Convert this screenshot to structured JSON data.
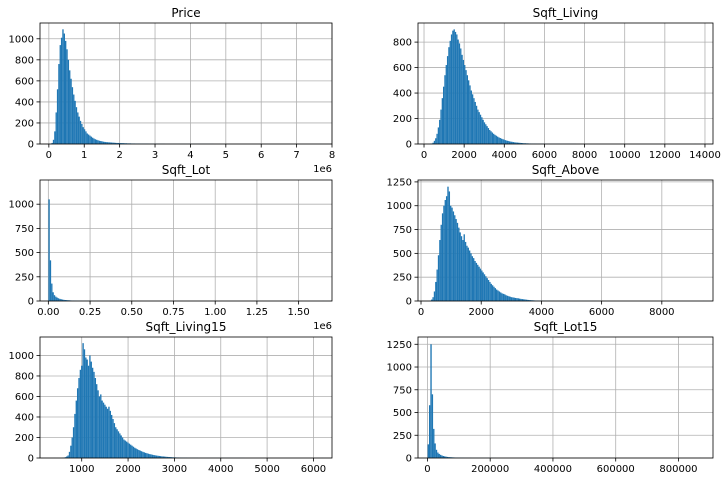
{
  "figure": {
    "background": "#ffffff",
    "bar_color": "#1f77b4",
    "grid_color": "#b0b0b0"
  },
  "chart_data": [
    {
      "type": "bar",
      "title": "Price",
      "grid": true,
      "offset_text": "1e6",
      "xlim": [
        -0.25,
        8.0
      ],
      "ylim": [
        0,
        1150
      ],
      "xticks": [
        0,
        1,
        2,
        3,
        4,
        5,
        6,
        7,
        8
      ],
      "xticklabels": [
        "0",
        "1",
        "2",
        "3",
        "4",
        "5",
        "6",
        "7",
        "8"
      ],
      "yticks": [
        0,
        200,
        400,
        600,
        800,
        1000
      ],
      "yticklabels": [
        "0",
        "200",
        "400",
        "600",
        "800",
        "1000"
      ],
      "bin_range": [
        0.075,
        7.7
      ],
      "counts": [
        10,
        40,
        120,
        300,
        520,
        760,
        940,
        1010,
        1090,
        1050,
        980,
        900,
        800,
        700,
        620,
        540,
        470,
        410,
        350,
        300,
        260,
        220,
        190,
        160,
        140,
        120,
        100,
        90,
        80,
        70,
        60,
        52,
        45,
        40,
        35,
        31,
        28,
        25,
        22,
        20,
        18,
        17,
        16,
        15,
        14,
        13,
        12,
        11,
        10,
        10,
        9,
        9,
        8,
        8,
        7,
        7,
        6,
        6,
        6,
        5,
        5,
        5,
        4,
        4,
        4,
        4,
        3,
        3,
        3,
        3,
        3,
        3,
        2,
        2,
        2,
        2,
        2,
        2,
        2,
        2,
        2,
        2,
        2,
        2,
        1,
        1,
        1,
        1,
        1,
        1,
        1,
        1,
        1,
        1,
        1,
        1,
        1,
        1,
        1,
        1,
        1,
        1,
        1,
        1,
        1,
        1,
        1,
        1,
        1,
        1,
        1,
        1,
        1,
        1,
        1,
        1,
        1,
        1,
        1,
        1,
        0,
        0,
        0,
        0,
        0,
        0,
        0,
        0,
        0,
        0,
        0,
        0,
        0,
        0,
        0,
        0,
        0,
        0,
        0,
        0,
        0,
        0,
        0,
        0,
        0,
        0,
        0,
        0,
        0,
        0,
        0,
        0,
        0,
        0,
        0,
        0,
        0,
        0,
        0,
        0,
        0,
        0,
        0,
        0,
        0,
        0,
        0,
        0,
        0,
        0,
        0,
        0,
        0,
        0,
        0,
        0,
        0,
        0,
        0,
        0,
        0,
        0,
        0,
        0,
        0,
        0,
        0,
        0,
        0,
        0,
        0,
        0,
        0,
        0,
        0,
        0,
        0,
        0,
        0,
        1
      ]
    },
    {
      "type": "bar",
      "title": "Sqft_Living",
      "grid": true,
      "offset_text": "",
      "xlim": [
        -300,
        14400
      ],
      "ylim": [
        0,
        950
      ],
      "xticks": [
        0,
        2000,
        4000,
        6000,
        8000,
        10000,
        12000,
        14000
      ],
      "xticklabels": [
        "0",
        "2000",
        "4000",
        "6000",
        "8000",
        "10000",
        "12000",
        "14000"
      ],
      "yticks": [
        0,
        200,
        400,
        600,
        800
      ],
      "yticklabels": [
        "0",
        "200",
        "400",
        "600",
        "800"
      ],
      "bin_range": [
        290,
        13540
      ],
      "counts": [
        2,
        4,
        10,
        25,
        45,
        80,
        130,
        190,
        270,
        360,
        450,
        540,
        620,
        690,
        760,
        810,
        860,
        890,
        900,
        880,
        860,
        820,
        790,
        750,
        700,
        660,
        620,
        580,
        540,
        500,
        460,
        420,
        390,
        360,
        330,
        300,
        270,
        250,
        230,
        210,
        190,
        170,
        155,
        140,
        125,
        110,
        100,
        90,
        80,
        72,
        65,
        58,
        52,
        47,
        42,
        38,
        34,
        30,
        27,
        24,
        21,
        19,
        17,
        15,
        13,
        12,
        11,
        10,
        9,
        8,
        7,
        6,
        6,
        5,
        5,
        4,
        4,
        3,
        3,
        3,
        3,
        2,
        2,
        2,
        2,
        2,
        2,
        1,
        1,
        1,
        1,
        1,
        1,
        1,
        1,
        1,
        1,
        1,
        1,
        1,
        1,
        1,
        1,
        1,
        1,
        1,
        1,
        1,
        1,
        1,
        1,
        0,
        0,
        0,
        0,
        0,
        0,
        0,
        0,
        0,
        0,
        0,
        0,
        0,
        0,
        0,
        0,
        0,
        0,
        0,
        0,
        0,
        0,
        0,
        0,
        0,
        0,
        0,
        0,
        0,
        0,
        0,
        0,
        0,
        0,
        0,
        0,
        0,
        0,
        0,
        0,
        0,
        0,
        0,
        0,
        0,
        0,
        0,
        0,
        0,
        0,
        0,
        0,
        0,
        0,
        0,
        0,
        0,
        0,
        0,
        0,
        0,
        0,
        0,
        0,
        0,
        0,
        0,
        0,
        0,
        0,
        0,
        0,
        0,
        0,
        0,
        0,
        0,
        0,
        0,
        0,
        0,
        0,
        0,
        0,
        0,
        0,
        0,
        0,
        0,
        0,
        1
      ]
    },
    {
      "type": "bar",
      "title": "Sqft_Lot",
      "grid": true,
      "offset_text": "1e6",
      "xlim": [
        -0.05,
        1.7
      ],
      "ylim": [
        0,
        1250
      ],
      "xticks": [
        0.0,
        0.25,
        0.5,
        0.75,
        1.0,
        1.25,
        1.5
      ],
      "xticklabels": [
        "0.00",
        "0.25",
        "0.50",
        "0.75",
        "1.00",
        "1.25",
        "1.50"
      ],
      "yticks": [
        0,
        250,
        500,
        750,
        1000
      ],
      "yticklabels": [
        "0",
        "250",
        "500",
        "750",
        "1000"
      ],
      "bin_range": [
        0.0005,
        1.651
      ],
      "counts": [
        1050,
        420,
        180,
        90,
        60,
        45,
        35,
        28,
        22,
        18,
        15,
        12,
        10,
        9,
        8,
        7,
        6,
        5,
        5,
        4,
        4,
        3,
        3,
        3,
        3,
        2,
        2,
        2,
        2,
        2,
        2,
        2,
        1,
        1,
        1,
        1,
        1,
        1,
        1,
        1,
        1,
        1,
        1,
        1,
        1,
        1,
        1,
        1,
        1,
        1,
        0,
        0,
        0,
        0,
        0,
        0,
        0,
        0,
        0,
        0,
        0,
        0,
        0,
        0,
        0,
        0,
        0,
        0,
        0,
        0,
        0,
        0,
        0,
        0,
        0,
        0,
        0,
        0,
        0,
        0,
        0,
        0,
        0,
        0,
        0,
        0,
        0,
        0,
        0,
        0,
        0,
        0,
        0,
        0,
        0,
        0,
        0,
        0,
        0,
        0,
        0,
        0,
        0,
        0,
        0,
        0,
        0,
        0,
        0,
        0,
        0,
        0,
        0,
        0,
        0,
        0,
        0,
        0,
        0,
        0,
        0,
        0,
        0,
        0,
        0,
        0,
        0,
        0,
        0,
        0,
        0,
        0,
        0,
        0,
        0,
        0,
        0,
        0,
        0,
        0,
        0,
        0,
        0,
        0,
        0,
        0,
        0,
        0,
        0,
        0,
        0,
        0,
        0,
        0,
        0,
        0,
        0,
        0,
        0,
        0,
        0,
        0,
        0,
        0,
        0,
        0,
        0,
        0,
        0,
        0,
        0,
        0,
        0,
        0,
        0,
        0,
        0,
        0,
        0,
        0,
        0,
        0,
        0,
        0,
        0,
        0,
        0,
        0,
        0,
        0,
        0,
        0,
        0,
        0,
        0,
        0,
        0,
        0,
        0,
        0,
        0,
        0,
        0,
        1
      ]
    },
    {
      "type": "bar",
      "title": "Sqft_Above",
      "grid": true,
      "offset_text": "",
      "xlim": [
        -100,
        9700
      ],
      "ylim": [
        0,
        1270
      ],
      "xticks": [
        0,
        2000,
        4000,
        6000,
        8000
      ],
      "xticklabels": [
        "0",
        "2000",
        "4000",
        "6000",
        "8000"
      ],
      "yticks": [
        0,
        250,
        500,
        750,
        1000,
        1250
      ],
      "yticklabels": [
        "0",
        "250",
        "500",
        "750",
        "1000",
        "1250"
      ],
      "bin_range": [
        290,
        9410
      ],
      "counts": [
        5,
        15,
        40,
        100,
        200,
        330,
        480,
        640,
        800,
        920,
        1000,
        1060,
        1100,
        1200,
        1150,
        1000,
        980,
        940,
        900,
        860,
        820,
        770,
        720,
        680,
        640,
        700,
        620,
        580,
        560,
        530,
        500,
        470,
        450,
        420,
        400,
        380,
        360,
        340,
        320,
        300,
        280,
        260,
        240,
        220,
        200,
        180,
        165,
        150,
        135,
        120,
        110,
        100,
        90,
        80,
        75,
        70,
        60,
        55,
        50,
        45,
        40,
        38,
        35,
        32,
        30,
        28,
        25,
        22,
        20,
        18,
        16,
        14,
        12,
        10,
        9,
        8,
        7,
        6,
        5,
        5,
        4,
        4,
        3,
        3,
        3,
        2,
        2,
        2,
        2,
        2,
        2,
        2,
        1,
        1,
        1,
        1,
        1,
        1,
        1,
        1,
        1,
        1,
        1,
        1,
        1,
        1,
        1,
        1,
        1,
        1,
        1,
        1,
        1,
        1,
        1,
        1,
        1,
        1,
        1,
        1,
        1,
        1,
        1,
        1,
        0,
        0,
        0,
        0,
        0,
        0,
        0,
        0,
        0,
        0,
        0,
        0,
        0,
        0,
        0,
        0,
        0,
        0,
        0,
        0,
        0,
        0,
        0,
        0,
        0,
        0,
        0,
        0,
        0,
        0,
        0,
        0,
        0,
        0,
        0,
        0,
        0,
        0,
        0,
        0,
        0,
        0,
        0,
        0,
        0,
        0,
        0,
        0,
        0,
        0,
        0,
        0,
        0,
        0,
        0,
        0,
        0,
        0,
        0,
        0,
        0,
        0,
        0,
        0,
        0,
        0,
        0,
        0,
        0,
        0,
        0,
        0,
        0,
        0,
        0,
        0,
        0,
        0,
        1
      ]
    },
    {
      "type": "bar",
      "title": "Sqft_Living15",
      "grid": true,
      "offset_text": "",
      "xlim": [
        100,
        6400
      ],
      "ylim": [
        0,
        1180
      ],
      "xticks": [
        1000,
        2000,
        3000,
        4000,
        5000,
        6000
      ],
      "xticklabels": [
        "1000",
        "2000",
        "3000",
        "4000",
        "5000",
        "6000"
      ],
      "yticks": [
        0,
        200,
        400,
        600,
        800,
        1000
      ],
      "yticklabels": [
        "0",
        "200",
        "400",
        "600",
        "800",
        "1000"
      ],
      "bin_range": [
        399,
        6210
      ],
      "counts": [
        1,
        0,
        0,
        0,
        0,
        1,
        2,
        4,
        8,
        15,
        25,
        60,
        120,
        200,
        300,
        430,
        560,
        680,
        780,
        860,
        900,
        1120,
        1060,
        980,
        960,
        900,
        1000,
        940,
        880,
        840,
        780,
        720,
        660,
        600,
        620,
        560,
        540,
        520,
        500,
        480,
        500,
        460,
        420,
        380,
        340,
        300,
        280,
        260,
        240,
        220,
        200,
        180,
        170,
        160,
        150,
        140,
        130,
        120,
        110,
        100,
        92,
        85,
        78,
        72,
        66,
        60,
        55,
        50,
        46,
        42,
        38,
        35,
        32,
        29,
        26,
        24,
        22,
        20,
        18,
        16,
        15,
        14,
        12,
        11,
        10,
        9,
        8,
        7,
        6,
        6,
        5,
        5,
        4,
        4,
        3,
        3,
        3,
        3,
        2,
        2,
        2,
        2,
        2,
        2,
        2,
        2,
        1,
        1,
        1,
        1,
        1,
        1,
        1,
        1,
        1,
        1,
        1,
        1,
        1,
        1,
        1,
        1,
        1,
        1,
        1,
        1,
        1,
        1,
        1,
        1,
        1,
        1,
        1,
        1,
        1,
        1,
        1,
        1,
        1,
        1,
        0,
        0,
        0,
        0,
        0,
        0,
        0,
        0,
        0,
        0,
        0,
        0,
        0,
        0,
        0,
        0,
        0,
        0,
        0,
        0,
        0,
        0,
        0,
        0,
        0,
        0,
        0,
        0,
        0,
        0,
        0,
        0,
        0,
        0,
        0,
        0,
        0,
        0,
        0,
        0,
        0,
        0,
        0,
        0,
        0,
        0,
        0,
        0,
        0,
        0,
        0,
        0,
        0,
        0,
        0,
        0,
        0,
        1
      ]
    },
    {
      "type": "bar",
      "title": "Sqft_Lot15",
      "grid": true,
      "offset_text": "",
      "xlim": [
        -30000,
        910000
      ],
      "ylim": [
        0,
        1330
      ],
      "xticks": [
        0,
        200000,
        400000,
        600000,
        800000
      ],
      "xticklabels": [
        "0",
        "200000",
        "400000",
        "600000",
        "800000"
      ],
      "yticks": [
        0,
        250,
        500,
        750,
        1000,
        1250
      ],
      "yticklabels": [
        "0",
        "250",
        "500",
        "750",
        "1000",
        "1250"
      ],
      "bin_range": [
        651,
        871200
      ],
      "counts": [
        150,
        580,
        1250,
        700,
        320,
        160,
        90,
        60,
        45,
        35,
        28,
        22,
        18,
        15,
        12,
        10,
        9,
        8,
        7,
        6,
        5,
        5,
        4,
        4,
        3,
        3,
        3,
        2,
        2,
        2,
        2,
        2,
        1,
        1,
        1,
        1,
        1,
        1,
        1,
        1,
        1,
        1,
        1,
        1,
        1,
        1,
        1,
        1,
        1,
        1,
        0,
        0,
        0,
        0,
        0,
        0,
        0,
        0,
        0,
        0,
        0,
        0,
        0,
        0,
        0,
        0,
        0,
        0,
        0,
        0,
        0,
        0,
        0,
        0,
        0,
        0,
        0,
        0,
        0,
        0,
        0,
        0,
        0,
        0,
        0,
        0,
        0,
        0,
        0,
        0,
        0,
        0,
        0,
        0,
        0,
        0,
        0,
        0,
        0,
        0,
        0,
        0,
        0,
        0,
        0,
        0,
        0,
        0,
        0,
        0,
        0,
        0,
        0,
        0,
        0,
        0,
        0,
        0,
        0,
        0,
        0,
        0,
        0,
        0,
        0,
        0,
        0,
        0,
        0,
        0,
        0,
        0,
        0,
        0,
        0,
        0,
        0,
        0,
        0,
        0,
        0,
        0,
        0,
        0,
        0,
        0,
        0,
        0,
        0,
        0,
        0,
        0,
        0,
        0,
        0,
        0,
        0,
        0,
        0,
        0,
        0,
        0,
        0,
        0,
        0,
        0,
        0,
        0,
        0,
        0,
        0,
        0,
        0,
        0,
        0,
        0,
        0,
        0,
        0,
        0,
        0,
        0,
        0,
        0,
        0,
        0,
        0,
        0,
        0,
        0,
        0,
        0,
        0,
        0,
        0,
        0,
        0,
        0,
        0,
        1
      ]
    }
  ]
}
